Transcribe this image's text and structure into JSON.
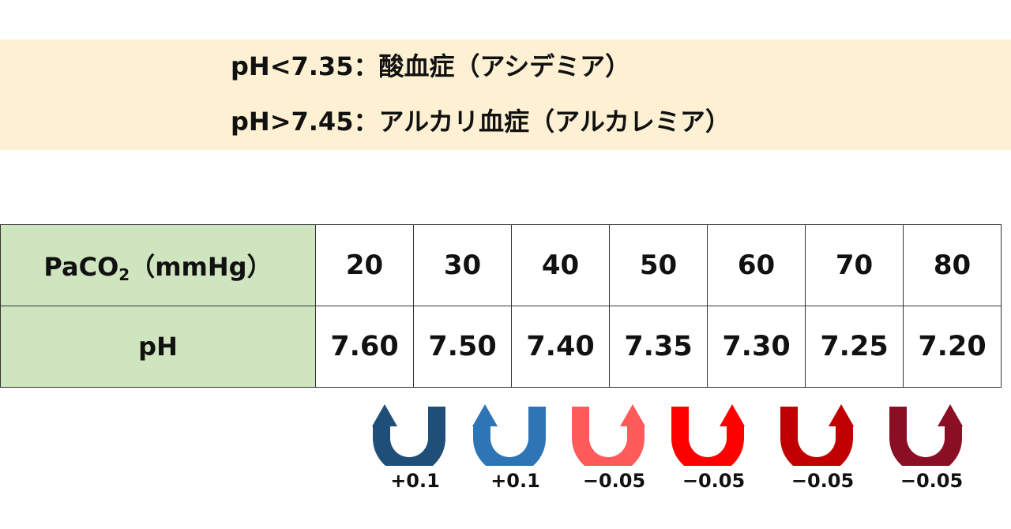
{
  "banner": {
    "line1": "pH<7.35：酸血症（アシデミア）",
    "line2": "pH>7.45：アルカリ血症（アルカレミア）",
    "background": "#fdf0d3"
  },
  "table": {
    "header_row_label": "PaCO",
    "header_row_sub": "2",
    "header_row_unit": "（mmHg）",
    "ph_row_label": "pH",
    "paco2_values": [
      "20",
      "30",
      "40",
      "50",
      "60",
      "70",
      "80"
    ],
    "ph_values": [
      "7.60",
      "7.50",
      "7.40",
      "7.35",
      "7.30",
      "7.25",
      "7.20"
    ],
    "label_cell_color": "#cfe5bf"
  },
  "arrows": [
    {
      "label": "+0.1",
      "color": "#1f4e79",
      "direction": "left",
      "icon": "u-turn-arrow-icon"
    },
    {
      "label": "+0.1",
      "color": "#2e75b6",
      "direction": "left",
      "icon": "u-turn-arrow-icon"
    },
    {
      "label": "−0.05",
      "color": "#ff5b5b",
      "direction": "right",
      "icon": "u-turn-arrow-icon"
    },
    {
      "label": "−0.05",
      "color": "#ff0000",
      "direction": "right",
      "icon": "u-turn-arrow-icon"
    },
    {
      "label": "−0.05",
      "color": "#c00000",
      "direction": "right",
      "icon": "u-turn-arrow-icon"
    },
    {
      "label": "−0.05",
      "color": "#8b0f24",
      "direction": "right",
      "icon": "u-turn-arrow-icon"
    }
  ]
}
